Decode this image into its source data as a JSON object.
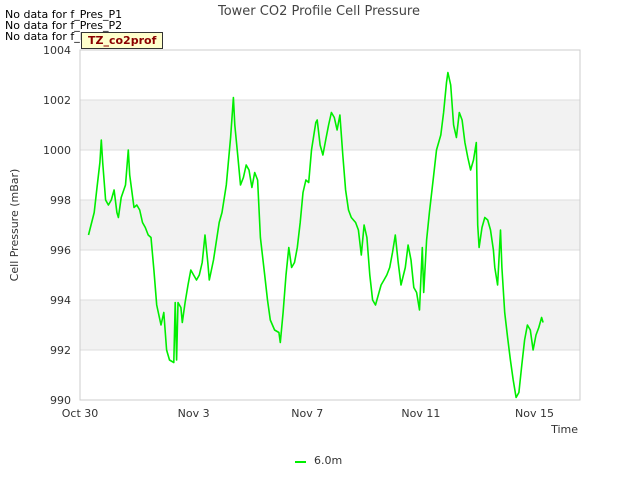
{
  "annotations": {
    "no_data": [
      "No data for f_Pres_P1",
      "No data for f_Pres_P2",
      "No data for f_Pres_P4"
    ],
    "badge": "TZ_co2prof"
  },
  "chart_data": {
    "type": "line",
    "title": "Tower CO2 Profile Cell Pressure",
    "xlabel": "Time",
    "ylabel": "Cell Pressure (mBar)",
    "ylim": [
      990,
      1004
    ],
    "yticks": [
      990,
      992,
      994,
      996,
      998,
      1000,
      1002,
      1004
    ],
    "xlim": [
      0,
      17.6
    ],
    "xticks": [
      {
        "day": 0,
        "label": "Oct 30"
      },
      {
        "day": 4,
        "label": "Nov 3"
      },
      {
        "day": 8,
        "label": "Nov 7"
      },
      {
        "day": 12,
        "label": "Nov 11"
      },
      {
        "day": 16,
        "label": "Nov 15"
      }
    ],
    "legend_position": "bottom-center",
    "series": [
      {
        "name": "6.0m",
        "color": "#00ee00",
        "points": [
          [
            0.3,
            996.6
          ],
          [
            0.5,
            997.5
          ],
          [
            0.6,
            998.5
          ],
          [
            0.7,
            999.5
          ],
          [
            0.75,
            1000.4
          ],
          [
            0.8,
            999.5
          ],
          [
            0.9,
            998.0
          ],
          [
            1.0,
            997.8
          ],
          [
            1.1,
            998.0
          ],
          [
            1.2,
            998.4
          ],
          [
            1.3,
            997.5
          ],
          [
            1.35,
            997.3
          ],
          [
            1.45,
            998.1
          ],
          [
            1.6,
            998.6
          ],
          [
            1.7,
            1000.0
          ],
          [
            1.75,
            999.0
          ],
          [
            1.9,
            997.7
          ],
          [
            2.0,
            997.8
          ],
          [
            2.1,
            997.6
          ],
          [
            2.2,
            997.1
          ],
          [
            2.3,
            996.9
          ],
          [
            2.4,
            996.6
          ],
          [
            2.5,
            996.5
          ],
          [
            2.6,
            995.2
          ],
          [
            2.7,
            993.8
          ],
          [
            2.85,
            993.0
          ],
          [
            2.95,
            993.5
          ],
          [
            3.05,
            992.0
          ],
          [
            3.15,
            991.6
          ],
          [
            3.3,
            991.5
          ],
          [
            3.35,
            993.9
          ],
          [
            3.4,
            991.6
          ],
          [
            3.45,
            993.9
          ],
          [
            3.55,
            993.7
          ],
          [
            3.6,
            993.1
          ],
          [
            3.7,
            993.9
          ],
          [
            3.8,
            994.6
          ],
          [
            3.9,
            995.2
          ],
          [
            4.0,
            995.0
          ],
          [
            4.1,
            994.8
          ],
          [
            4.2,
            995.0
          ],
          [
            4.3,
            995.5
          ],
          [
            4.4,
            996.6
          ],
          [
            4.5,
            995.5
          ],
          [
            4.55,
            994.8
          ],
          [
            4.7,
            995.6
          ],
          [
            4.9,
            997.1
          ],
          [
            5.0,
            997.5
          ],
          [
            5.15,
            998.6
          ],
          [
            5.3,
            1000.5
          ],
          [
            5.4,
            1002.1
          ],
          [
            5.45,
            1001.0
          ],
          [
            5.55,
            999.8
          ],
          [
            5.65,
            998.6
          ],
          [
            5.75,
            998.9
          ],
          [
            5.85,
            999.4
          ],
          [
            5.95,
            999.2
          ],
          [
            6.05,
            998.5
          ],
          [
            6.15,
            999.1
          ],
          [
            6.25,
            998.8
          ],
          [
            6.35,
            996.5
          ],
          [
            6.5,
            995.0
          ],
          [
            6.6,
            994.0
          ],
          [
            6.7,
            993.2
          ],
          [
            6.85,
            992.8
          ],
          [
            7.0,
            992.7
          ],
          [
            7.05,
            992.3
          ],
          [
            7.15,
            993.5
          ],
          [
            7.25,
            995.0
          ],
          [
            7.35,
            996.1
          ],
          [
            7.45,
            995.3
          ],
          [
            7.55,
            995.5
          ],
          [
            7.65,
            996.1
          ],
          [
            7.75,
            997.1
          ],
          [
            7.85,
            998.3
          ],
          [
            7.95,
            998.8
          ],
          [
            8.05,
            998.7
          ],
          [
            8.15,
            1000.0
          ],
          [
            8.3,
            1001.1
          ],
          [
            8.35,
            1001.2
          ],
          [
            8.45,
            1000.2
          ],
          [
            8.55,
            999.8
          ],
          [
            8.65,
            1000.4
          ],
          [
            8.75,
            1001.0
          ],
          [
            8.85,
            1001.5
          ],
          [
            8.95,
            1001.3
          ],
          [
            9.05,
            1000.8
          ],
          [
            9.15,
            1001.4
          ],
          [
            9.25,
            999.8
          ],
          [
            9.35,
            998.4
          ],
          [
            9.45,
            997.6
          ],
          [
            9.55,
            997.3
          ],
          [
            9.7,
            997.1
          ],
          [
            9.8,
            996.8
          ],
          [
            9.9,
            995.8
          ],
          [
            10.0,
            997.0
          ],
          [
            10.1,
            996.5
          ],
          [
            10.2,
            995.0
          ],
          [
            10.3,
            994.0
          ],
          [
            10.4,
            993.8
          ],
          [
            10.5,
            994.2
          ],
          [
            10.6,
            994.6
          ],
          [
            10.7,
            994.8
          ],
          [
            10.8,
            995.0
          ],
          [
            10.9,
            995.3
          ],
          [
            11.0,
            995.9
          ],
          [
            11.1,
            996.6
          ],
          [
            11.2,
            995.5
          ],
          [
            11.3,
            994.6
          ],
          [
            11.45,
            995.3
          ],
          [
            11.55,
            996.2
          ],
          [
            11.65,
            995.6
          ],
          [
            11.75,
            994.5
          ],
          [
            11.85,
            994.3
          ],
          [
            11.95,
            993.6
          ],
          [
            12.05,
            996.1
          ],
          [
            12.1,
            994.3
          ],
          [
            12.2,
            996.4
          ],
          [
            12.3,
            997.5
          ],
          [
            12.45,
            999.0
          ],
          [
            12.55,
            1000.0
          ],
          [
            12.7,
            1000.6
          ],
          [
            12.8,
            1001.5
          ],
          [
            12.9,
            1002.7
          ],
          [
            12.95,
            1003.1
          ],
          [
            13.05,
            1002.6
          ],
          [
            13.15,
            1001.0
          ],
          [
            13.25,
            1000.5
          ],
          [
            13.35,
            1001.5
          ],
          [
            13.45,
            1001.2
          ],
          [
            13.55,
            1000.3
          ],
          [
            13.65,
            999.7
          ],
          [
            13.75,
            999.2
          ],
          [
            13.85,
            999.6
          ],
          [
            13.95,
            1000.3
          ],
          [
            14.0,
            997.0
          ],
          [
            14.05,
            996.1
          ],
          [
            14.15,
            996.9
          ],
          [
            14.25,
            997.3
          ],
          [
            14.35,
            997.2
          ],
          [
            14.45,
            996.8
          ],
          [
            14.55,
            996.0
          ],
          [
            14.6,
            995.3
          ],
          [
            14.7,
            994.6
          ],
          [
            14.8,
            996.8
          ],
          [
            14.85,
            995.3
          ],
          [
            14.95,
            993.5
          ],
          [
            15.05,
            992.5
          ],
          [
            15.15,
            991.6
          ],
          [
            15.25,
            990.8
          ],
          [
            15.35,
            990.1
          ],
          [
            15.45,
            990.3
          ],
          [
            15.55,
            991.4
          ],
          [
            15.65,
            992.4
          ],
          [
            15.75,
            993.0
          ],
          [
            15.85,
            992.8
          ],
          [
            15.95,
            992.0
          ],
          [
            16.05,
            992.6
          ],
          [
            16.15,
            992.9
          ],
          [
            16.25,
            993.3
          ],
          [
            16.3,
            993.1
          ]
        ]
      }
    ]
  }
}
